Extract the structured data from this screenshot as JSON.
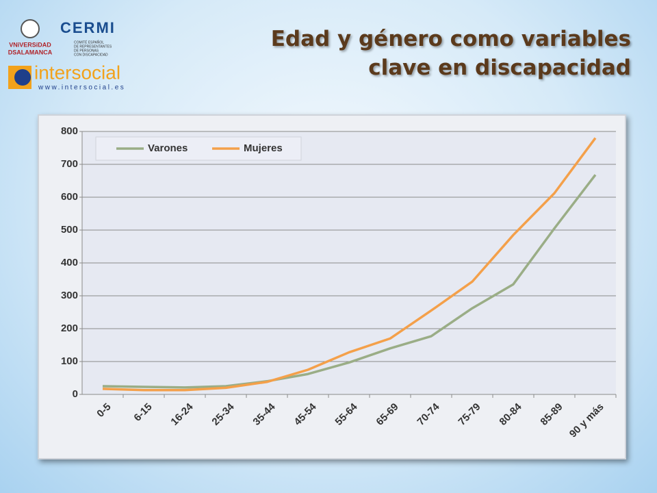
{
  "logos": {
    "university": [
      "VNiVERSiDAD",
      "DSALAMANCA"
    ],
    "cermi": "CERMI",
    "cermi_caption": [
      "COMITÉ ESPAÑOL",
      "DE REPRESENTANTES",
      "DE PERSONAS",
      "CON DISCAPACIDAD"
    ],
    "intersocial": "intersocial",
    "intersocial_url": "www.intersocial.es"
  },
  "chart_data": {
    "type": "line",
    "title": "Edad y género como variables clave en discapacidad",
    "categories": [
      "0-5",
      "6-15",
      "16-24",
      "25-34",
      "35-44",
      "45-54",
      "55-64",
      "65-69",
      "70-74",
      "75-79",
      "80-84",
      "85-89",
      "90 y más"
    ],
    "series": [
      {
        "name": "Varones",
        "color": "#9aad86",
        "values": [
          25,
          23,
          21,
          25,
          40,
          62,
          97,
          140,
          177,
          262,
          335,
          505,
          668
        ]
      },
      {
        "name": "Mujeres",
        "color": "#f4a04a",
        "values": [
          17,
          13,
          13,
          20,
          38,
          75,
          128,
          170,
          255,
          343,
          485,
          612,
          780
        ]
      }
    ],
    "ylim": [
      0,
      800
    ],
    "yticks": [
      0,
      100,
      200,
      300,
      400,
      500,
      600,
      700,
      800
    ],
    "grid": true,
    "legend": "top-left"
  }
}
